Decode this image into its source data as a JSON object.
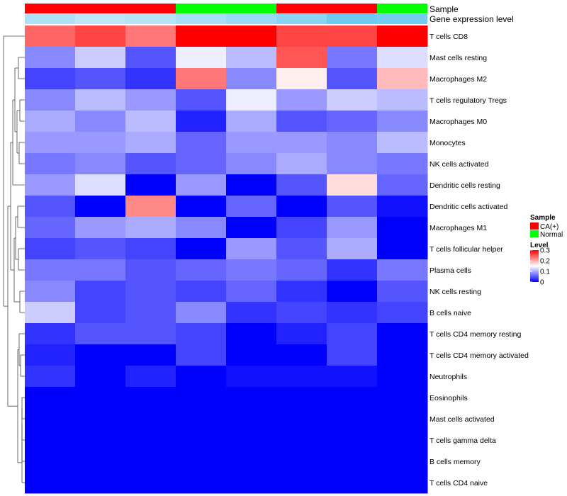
{
  "chart_data": {
    "type": "heatmap",
    "title": "",
    "annotation_labels": {
      "sample": "Sample",
      "gene": "Gene expression level"
    },
    "sample_groups": [
      "CA(+)",
      "CA(+)",
      "CA(+)",
      "Normal",
      "Normal",
      "CA(+)",
      "CA(+)",
      "Normal"
    ],
    "gene_expression_levels": [
      0.55,
      0.45,
      0.5,
      0.6,
      0.7,
      0.8,
      1.0,
      0.95
    ],
    "rows": [
      "T cells CD8",
      "Mast cells resting",
      "Macrophages M2",
      "T cells regulatory  Tregs",
      "Macrophages M0",
      "Monocytes",
      "NK cells activated",
      "Dendritic cells resting",
      "Dendritic cells activated",
      "Macrophages M1",
      "T cells follicular helper",
      "Plasma cells",
      "NK cells resting",
      "B cells naive",
      "T cells CD4 memory resting",
      "T cells CD4 memory activated",
      "Neutrophils",
      "Eosinophils",
      "Mast cells activated",
      "T cells gamma delta",
      "B cells memory",
      "T cells CD4 naive"
    ],
    "values": [
      [
        0.24,
        0.26,
        0.23,
        0.3,
        0.3,
        0.26,
        0.26,
        0.3
      ],
      [
        0.08,
        0.12,
        0.05,
        0.14,
        0.11,
        0.25,
        0.07,
        0.13
      ],
      [
        0.04,
        0.05,
        0.03,
        0.23,
        0.08,
        0.16,
        0.05,
        0.19
      ],
      [
        0.08,
        0.11,
        0.09,
        0.05,
        0.14,
        0.09,
        0.12,
        0.11
      ],
      [
        0.1,
        0.08,
        0.11,
        0.02,
        0.1,
        0.05,
        0.06,
        0.08
      ],
      [
        0.09,
        0.09,
        0.1,
        0.06,
        0.09,
        0.09,
        0.08,
        0.11
      ],
      [
        0.07,
        0.08,
        0.05,
        0.06,
        0.08,
        0.1,
        0.08,
        0.07
      ],
      [
        0.09,
        0.13,
        0.0,
        0.09,
        0.0,
        0.05,
        0.17,
        0.06
      ],
      [
        0.05,
        0.0,
        0.22,
        0.0,
        0.06,
        0.0,
        0.05,
        0.01
      ],
      [
        0.06,
        0.09,
        0.1,
        0.08,
        0.0,
        0.04,
        0.09,
        0.0
      ],
      [
        0.04,
        0.05,
        0.04,
        0.0,
        0.09,
        0.05,
        0.1,
        0.0
      ],
      [
        0.07,
        0.07,
        0.05,
        0.06,
        0.07,
        0.06,
        0.03,
        0.07
      ],
      [
        0.08,
        0.04,
        0.05,
        0.04,
        0.06,
        0.03,
        0.0,
        0.05
      ],
      [
        0.12,
        0.04,
        0.05,
        0.08,
        0.03,
        0.04,
        0.03,
        0.04
      ],
      [
        0.03,
        0.05,
        0.05,
        0.04,
        0.0,
        0.02,
        0.04,
        0.0
      ],
      [
        0.02,
        0.0,
        0.0,
        0.04,
        0.0,
        0.0,
        0.04,
        0.0
      ],
      [
        0.03,
        0.0,
        0.02,
        0.0,
        0.01,
        0.01,
        0.01,
        0.0
      ],
      [
        0.0,
        0.0,
        0.0,
        0.0,
        0.0,
        0.0,
        0.0,
        0.0
      ],
      [
        0.0,
        0.0,
        0.0,
        0.0,
        0.0,
        0.0,
        0.0,
        0.0
      ],
      [
        0.0,
        0.0,
        0.0,
        0.0,
        0.0,
        0.0,
        0.0,
        0.0
      ],
      [
        0.0,
        0.0,
        0.0,
        0.0,
        0.0,
        0.0,
        0.0,
        0.0
      ],
      [
        0.0,
        0.0,
        0.0,
        0.0,
        0.0,
        0.0,
        0.0,
        0.0
      ]
    ],
    "color_scale": {
      "min": 0,
      "mid": 0.15,
      "max": 0.3,
      "low": "#0000FF",
      "mid_color": "#FFFFFF",
      "high": "#FF0000"
    },
    "legend": {
      "sample_title": "Sample",
      "sample_items": [
        {
          "label": "CA(+)",
          "color": "#FF0000"
        },
        {
          "label": "Normal",
          "color": "#00FF00"
        }
      ],
      "level_title": "Level",
      "level_ticks": [
        {
          "value": 0.3,
          "label": "0.3"
        },
        {
          "value": 0.2,
          "label": "0.2"
        },
        {
          "value": 0.1,
          "label": "0.1"
        },
        {
          "value": 0,
          "label": "0"
        }
      ]
    },
    "row_dendrogram": true
  }
}
